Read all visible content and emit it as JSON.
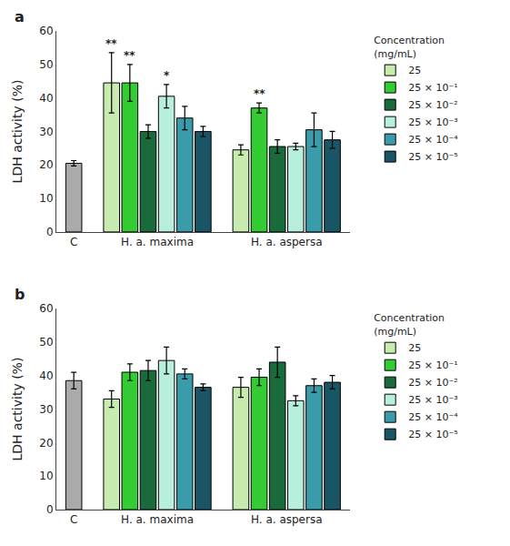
{
  "chart_data": [
    {
      "type": "bar",
      "title": "a",
      "categories": [
        "C",
        "H. a. maxima",
        "H. a. aspersa"
      ],
      "series": [
        {
          "color": "#aaaaaa",
          "values": [
            20.5,
            null,
            null
          ],
          "errors": [
            0.8,
            null,
            null
          ]
        },
        {
          "name": "25",
          "color": "#c8ebb0",
          "values": [
            null,
            44.5,
            24.5
          ],
          "errors": [
            null,
            9.0,
            1.5
          ]
        },
        {
          "name": "25 × 10⁻¹",
          "color": "#33cc33",
          "values": [
            null,
            44.5,
            37.0
          ],
          "errors": [
            null,
            5.5,
            1.5
          ]
        },
        {
          "name": "25 × 10⁻²",
          "color": "#1a6b3c",
          "values": [
            null,
            30.0,
            25.5
          ],
          "errors": [
            null,
            2.0,
            2.0
          ]
        },
        {
          "name": "25 × 10⁻³",
          "color": "#b8eedc",
          "values": [
            null,
            40.5,
            25.5
          ],
          "errors": [
            null,
            3.5,
            1.0
          ]
        },
        {
          "name": "25 × 10⁻⁴",
          "color": "#3a9baa",
          "values": [
            null,
            34.0,
            30.5
          ],
          "errors": [
            null,
            3.5,
            5.0
          ]
        },
        {
          "name": "25 × 10⁻⁵",
          "color": "#1a5566",
          "values": [
            null,
            30.0,
            27.5
          ],
          "errors": [
            null,
            1.5,
            2.5
          ]
        }
      ],
      "annotations": [
        {
          "text": "**",
          "category": "H. a. maxima",
          "series": "25"
        },
        {
          "text": "**",
          "category": "H. a. maxima",
          "series": "25 × 10⁻¹"
        },
        {
          "text": "*",
          "category": "H. a. maxima",
          "series": "25 × 10⁻³"
        },
        {
          "text": "**",
          "category": "H. a. aspersa",
          "series": "25 × 10⁻¹"
        }
      ],
      "ylabel": "LDH activity (%)",
      "ylim": [
        0,
        60
      ],
      "yticks": [
        0,
        10,
        20,
        30,
        40,
        50,
        60
      ],
      "grid": false,
      "legend": "right",
      "legend_title": "Concentration\n(mg/mL)"
    },
    {
      "type": "bar",
      "title": "b",
      "categories": [
        "C",
        "H. a. maxima",
        "H. a. aspersa"
      ],
      "series": [
        {
          "color": "#aaaaaa",
          "values": [
            38.5,
            null,
            null
          ],
          "errors": [
            2.5,
            null,
            null
          ]
        },
        {
          "name": "25",
          "color": "#c8ebb0",
          "values": [
            null,
            33.0,
            36.5
          ],
          "errors": [
            null,
            2.5,
            3.0
          ]
        },
        {
          "name": "25 × 10⁻¹",
          "color": "#33cc33",
          "values": [
            null,
            41.0,
            39.5
          ],
          "errors": [
            null,
            2.5,
            2.5
          ]
        },
        {
          "name": "25 × 10⁻²",
          "color": "#1a6b3c",
          "values": [
            null,
            41.5,
            44.0
          ],
          "errors": [
            null,
            3.0,
            4.5
          ]
        },
        {
          "name": "25 × 10⁻³",
          "color": "#b8eedc",
          "values": [
            null,
            44.5,
            32.5
          ],
          "errors": [
            null,
            4.0,
            1.5
          ]
        },
        {
          "name": "25 × 10⁻⁴",
          "color": "#3a9baa",
          "values": [
            null,
            40.5,
            37.0
          ],
          "errors": [
            null,
            1.5,
            2.0
          ]
        },
        {
          "name": "25 × 10⁻⁵",
          "color": "#1a5566",
          "values": [
            null,
            36.5,
            38.0
          ],
          "errors": [
            null,
            1.0,
            2.0
          ]
        }
      ],
      "annotations": [],
      "ylabel": "LDH activity (%)",
      "ylim": [
        0,
        60
      ],
      "yticks": [
        0,
        10,
        20,
        30,
        40,
        50,
        60
      ],
      "grid": false,
      "legend": "right",
      "legend_title": "Concentration\n(mg/mL)"
    }
  ]
}
